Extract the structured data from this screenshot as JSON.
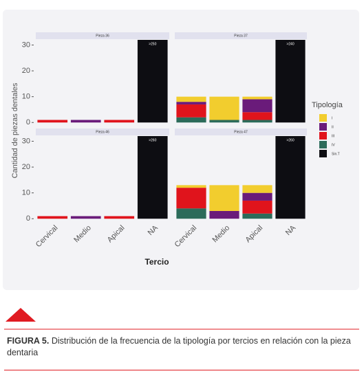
{
  "chart_data": {
    "type": "bar",
    "stacked": true,
    "ylabel": "Cantidad de piezas dentales",
    "xlabel": "Tercio",
    "legend_title": "Tipología",
    "categories": [
      "Cervical",
      "Medio",
      "Apical",
      "NA"
    ],
    "ylim": [
      -1,
      32
    ],
    "yticks": [
      0,
      10,
      20,
      30
    ],
    "series": [
      {
        "name": "I",
        "color": "#f2cd2e"
      },
      {
        "name": "II",
        "color": "#6a1b7a"
      },
      {
        "name": "III",
        "color": "#e0141c"
      },
      {
        "name": "IV",
        "color": "#2c6b5a"
      },
      {
        "name": "Sin.T",
        "color": "#0d0d12"
      }
    ],
    "facets": [
      {
        "title": "Pieza 36",
        "series": [
          {
            "values": [
              0,
              0,
              0,
              0
            ]
          },
          {
            "values": [
              0,
              1,
              0,
              0
            ]
          },
          {
            "values": [
              1,
              0,
              1,
              0
            ]
          },
          {
            "values": [
              0,
              0,
              0,
              0
            ]
          },
          {
            "values": [
              0,
              0,
              0,
              250
            ],
            "value_labels": [
              null,
              null,
              null,
              ">250"
            ]
          }
        ]
      },
      {
        "title": "Pieza 37",
        "series": [
          {
            "values": [
              2,
              9,
              1,
              0
            ]
          },
          {
            "values": [
              1,
              0,
              5,
              0
            ]
          },
          {
            "values": [
              5,
              0,
              3,
              0
            ]
          },
          {
            "values": [
              2,
              1,
              1,
              0
            ]
          },
          {
            "values": [
              0,
              0,
              0,
              240
            ],
            "value_labels": [
              null,
              null,
              null,
              ">240"
            ]
          }
        ]
      },
      {
        "title": "Pieza 46",
        "series": [
          {
            "values": [
              0,
              0,
              0,
              0
            ]
          },
          {
            "values": [
              0,
              1,
              0,
              0
            ]
          },
          {
            "values": [
              1,
              0,
              1,
              0
            ]
          },
          {
            "values": [
              0,
              0,
              0,
              0
            ]
          },
          {
            "values": [
              0,
              0,
              0,
              260
            ],
            "value_labels": [
              null,
              null,
              null,
              ">260"
            ]
          }
        ]
      },
      {
        "title": "Pieza 47",
        "series": [
          {
            "values": [
              1,
              10,
              3,
              0
            ]
          },
          {
            "values": [
              0,
              3,
              3,
              0
            ]
          },
          {
            "values": [
              8,
              0,
              5,
              0
            ]
          },
          {
            "values": [
              4,
              0,
              2,
              0
            ]
          },
          {
            "values": [
              0,
              0,
              0,
              260
            ],
            "value_labels": [
              null,
              null,
              null,
              ">260"
            ]
          }
        ]
      }
    ]
  },
  "caption": {
    "label": "FIGURA 5.",
    "text": "Distribución de la frecuencia de la tipología por tercios en relación con la pieza dentaria"
  }
}
